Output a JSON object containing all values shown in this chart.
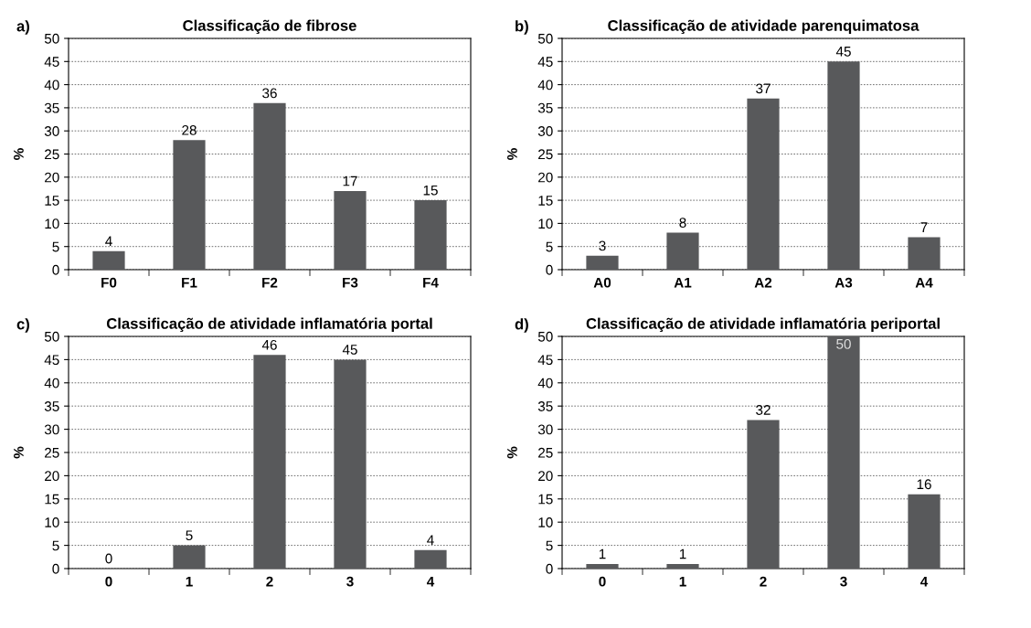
{
  "chart_data": [
    {
      "type": "bar",
      "title": "Classificação de fibrose",
      "ylabel": "%",
      "annotations": [
        "a)"
      ],
      "categories": [
        "F0",
        "F1",
        "F2",
        "F3",
        "F4"
      ],
      "values": [
        4,
        28,
        36,
        17,
        15
      ],
      "color": "#58595b",
      "ylim": [
        0,
        50
      ],
      "yticks": [
        0,
        5,
        10,
        15,
        20,
        25,
        30,
        35,
        40,
        45,
        50
      ],
      "grid": "y",
      "data_labels": true
    },
    {
      "type": "bar",
      "title": "Classificação de atividade parenquimatosa",
      "ylabel": "%",
      "annotations": [
        "b)"
      ],
      "categories": [
        "A0",
        "A1",
        "A2",
        "A3",
        "A4"
      ],
      "values": [
        3,
        8,
        37,
        45,
        7
      ],
      "color": "#58595b",
      "ylim": [
        0,
        50
      ],
      "yticks": [
        0,
        5,
        10,
        15,
        20,
        25,
        30,
        35,
        40,
        45,
        50
      ],
      "grid": "y",
      "data_labels": true
    },
    {
      "type": "bar",
      "title": "Classificação de atividade inflamatória portal",
      "ylabel": "%",
      "annotations": [
        "c)"
      ],
      "categories": [
        "0",
        "1",
        "2",
        "3",
        "4"
      ],
      "values": [
        0,
        5,
        46,
        45,
        4
      ],
      "color": "#58595b",
      "ylim": [
        0,
        50
      ],
      "yticks": [
        0,
        5,
        10,
        15,
        20,
        25,
        30,
        35,
        40,
        45,
        50
      ],
      "grid": "y",
      "data_labels": true
    },
    {
      "type": "bar",
      "title": "Classificação de atividade inflamatória periportal",
      "ylabel": "%",
      "annotations": [
        "d)"
      ],
      "categories": [
        "0",
        "1",
        "2",
        "3",
        "4"
      ],
      "values": [
        1,
        1,
        32,
        50,
        16
      ],
      "color": "#58595b",
      "ylim": [
        0,
        50
      ],
      "yticks": [
        0,
        5,
        10,
        15,
        20,
        25,
        30,
        35,
        40,
        45,
        50
      ],
      "grid": "y",
      "data_labels": true
    }
  ]
}
